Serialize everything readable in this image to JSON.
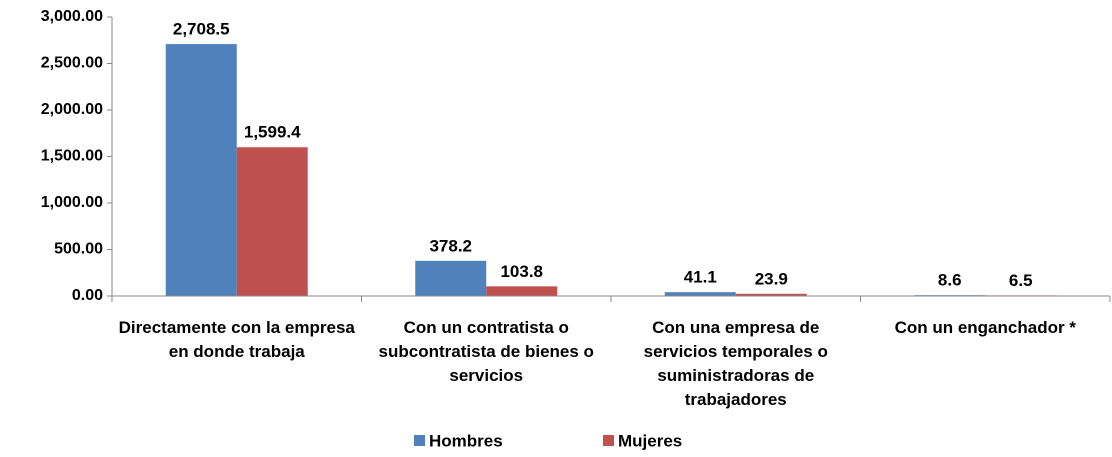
{
  "chart_data": {
    "type": "bar",
    "categories": [
      "Directamente con la empresa en donde trabaja",
      "Con un contratista o subcontratista de bienes o servicios",
      "Con una empresa de servicios temporales o suministradoras de trabajadores",
      "Con un enganchador *"
    ],
    "series": [
      {
        "name": "Hombres",
        "color": "#4f81bd",
        "values": [
          2708.5,
          378.2,
          41.1,
          8.6
        ],
        "value_labels": [
          "2,708.5",
          "378.2",
          "41.1",
          "8.6"
        ]
      },
      {
        "name": "Mujeres",
        "color": "#c0504d",
        "values": [
          1599.4,
          103.8,
          23.9,
          6.5
        ],
        "value_labels": [
          "1,599.4",
          "103.8",
          "23.9",
          "6.5"
        ]
      }
    ],
    "ylim": [
      0,
      3000
    ],
    "yticks": [
      {
        "value": 0,
        "label": "0.00"
      },
      {
        "value": 500,
        "label": "500.00"
      },
      {
        "value": 1000,
        "label": "1,000.00"
      },
      {
        "value": 1500,
        "label": "1,500.00"
      },
      {
        "value": 2000,
        "label": "2,000.00"
      },
      {
        "value": 2500,
        "label": "2,500.00"
      },
      {
        "value": 3000,
        "label": "3,000.00"
      }
    ],
    "grid": false,
    "legend": "bottom"
  }
}
